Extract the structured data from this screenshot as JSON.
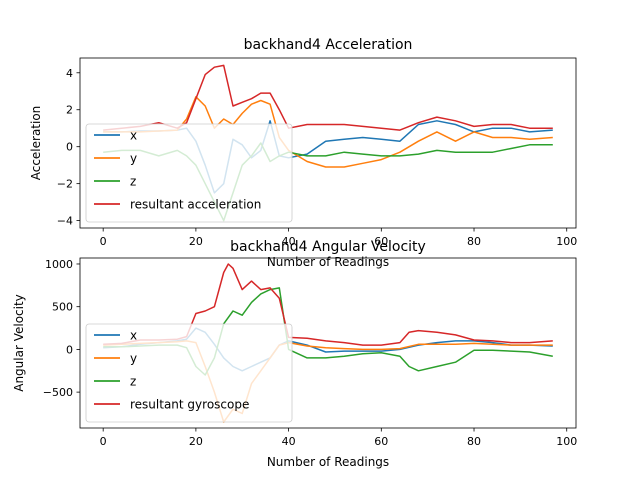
{
  "chart_data": [
    {
      "type": "line",
      "title": "backhand4 Acceleration",
      "xlabel": "Number of Readings",
      "ylabel": "Acceleration",
      "xlim": [
        -5,
        102
      ],
      "ylim": [
        -4.4,
        4.8
      ],
      "xticks": [
        0,
        20,
        40,
        60,
        80,
        100
      ],
      "yticks": [
        -4,
        -2,
        0,
        2,
        4
      ],
      "legend_position": "lower-left",
      "series": [
        {
          "name": "x",
          "color": "#1f77b4",
          "x": [
            0,
            4,
            8,
            12,
            16,
            18,
            20,
            22,
            24,
            26,
            28,
            30,
            32,
            34,
            36,
            38,
            40,
            44,
            48,
            52,
            56,
            60,
            64,
            68,
            72,
            76,
            80,
            84,
            88,
            92,
            97
          ],
          "y": [
            0.8,
            0.8,
            0.85,
            0.85,
            0.9,
            1.0,
            0.3,
            -1.0,
            -2.5,
            -2.0,
            0.4,
            0.1,
            -0.6,
            -0.2,
            1.4,
            -0.5,
            -0.6,
            -0.4,
            0.3,
            0.4,
            0.5,
            0.4,
            0.3,
            1.2,
            1.4,
            1.2,
            0.8,
            1.0,
            1.0,
            0.8,
            0.9
          ]
        },
        {
          "name": "y",
          "color": "#ff7f0e",
          "x": [
            0,
            4,
            8,
            12,
            16,
            18,
            20,
            22,
            24,
            26,
            28,
            30,
            32,
            34,
            36,
            38,
            40,
            44,
            48,
            52,
            56,
            60,
            64,
            68,
            72,
            76,
            80,
            84,
            88,
            92,
            97
          ],
          "y": [
            0.8,
            0.8,
            0.8,
            0.85,
            0.9,
            1.5,
            2.7,
            2.2,
            1.0,
            1.5,
            1.2,
            1.8,
            2.3,
            2.5,
            2.3,
            0.5,
            -0.2,
            -0.8,
            -1.1,
            -1.1,
            -0.9,
            -0.7,
            -0.3,
            0.3,
            0.8,
            0.3,
            0.8,
            0.5,
            0.5,
            0.4,
            0.5
          ]
        },
        {
          "name": "z",
          "color": "#2ca02c",
          "x": [
            0,
            4,
            8,
            12,
            16,
            18,
            20,
            22,
            24,
            26,
            28,
            30,
            32,
            34,
            36,
            38,
            40,
            44,
            48,
            52,
            56,
            60,
            64,
            68,
            72,
            76,
            80,
            84,
            88,
            92,
            97
          ],
          "y": [
            -0.3,
            -0.2,
            -0.2,
            -0.5,
            -0.2,
            -0.5,
            -1.0,
            -2.0,
            -3.0,
            -4.0,
            -2.5,
            -1.0,
            -0.5,
            0.2,
            -0.8,
            -0.5,
            -0.3,
            -0.5,
            -0.5,
            -0.3,
            -0.4,
            -0.5,
            -0.5,
            -0.4,
            -0.2,
            -0.3,
            -0.3,
            -0.3,
            -0.1,
            0.1,
            0.1
          ]
        },
        {
          "name": "resultant acceleration",
          "color": "#d62728",
          "x": [
            0,
            4,
            8,
            12,
            16,
            18,
            20,
            22,
            24,
            26,
            28,
            30,
            32,
            34,
            36,
            38,
            40,
            44,
            48,
            52,
            56,
            60,
            64,
            68,
            72,
            76,
            80,
            84,
            88,
            92,
            97
          ],
          "y": [
            0.9,
            1.0,
            1.1,
            1.3,
            1.0,
            1.3,
            2.6,
            3.9,
            4.3,
            4.4,
            2.2,
            2.4,
            2.6,
            2.9,
            2.9,
            2.0,
            1.0,
            1.2,
            1.2,
            1.2,
            1.1,
            1.0,
            0.9,
            1.3,
            1.6,
            1.4,
            1.1,
            1.2,
            1.2,
            1.0,
            1.0
          ]
        }
      ]
    },
    {
      "type": "line",
      "title": "backhand4 Angular Velocity",
      "xlabel": "Number of Readings",
      "ylabel": "Angular Velocity",
      "xlim": [
        -5,
        102
      ],
      "ylim": [
        -920,
        1070
      ],
      "xticks": [
        0,
        20,
        40,
        60,
        80,
        100
      ],
      "yticks": [
        -500,
        0,
        500,
        1000
      ],
      "legend_position": "lower-left",
      "series": [
        {
          "name": "x",
          "color": "#1f77b4",
          "x": [
            0,
            4,
            8,
            12,
            16,
            18,
            20,
            22,
            24,
            26,
            28,
            30,
            32,
            34,
            36,
            38,
            40,
            44,
            48,
            52,
            56,
            60,
            64,
            68,
            72,
            76,
            80,
            84,
            88,
            92,
            97
          ],
          "y": [
            20,
            30,
            60,
            80,
            100,
            120,
            250,
            200,
            60,
            -100,
            -200,
            -250,
            -200,
            -150,
            -100,
            50,
            100,
            50,
            -30,
            -20,
            -20,
            -20,
            0,
            50,
            80,
            100,
            100,
            80,
            50,
            50,
            40
          ]
        },
        {
          "name": "y",
          "color": "#ff7f0e",
          "x": [
            0,
            4,
            8,
            12,
            16,
            18,
            20,
            22,
            24,
            26,
            28,
            30,
            32,
            34,
            36,
            38,
            40,
            44,
            48,
            52,
            56,
            60,
            64,
            68,
            72,
            76,
            80,
            84,
            88,
            92,
            97
          ],
          "y": [
            50,
            60,
            70,
            80,
            90,
            100,
            80,
            -200,
            -500,
            -850,
            -700,
            -750,
            -400,
            -250,
            -100,
            50,
            80,
            40,
            20,
            10,
            0,
            0,
            10,
            60,
            60,
            60,
            70,
            60,
            50,
            50,
            50
          ]
        },
        {
          "name": "z",
          "color": "#2ca02c",
          "x": [
            0,
            4,
            8,
            12,
            16,
            18,
            20,
            22,
            24,
            26,
            28,
            30,
            32,
            34,
            36,
            38,
            40,
            44,
            48,
            52,
            56,
            60,
            64,
            66,
            68,
            72,
            76,
            80,
            84,
            88,
            92,
            97
          ],
          "y": [
            30,
            30,
            40,
            50,
            50,
            20,
            -200,
            -300,
            -100,
            300,
            450,
            400,
            550,
            650,
            700,
            720,
            0,
            -100,
            -100,
            -80,
            -50,
            -40,
            -80,
            -200,
            -250,
            -200,
            -150,
            -10,
            -10,
            -20,
            -30,
            -80
          ]
        },
        {
          "name": "resultant gyroscope",
          "color": "#d62728",
          "x": [
            0,
            4,
            8,
            12,
            16,
            18,
            20,
            22,
            24,
            26,
            27,
            28,
            30,
            32,
            34,
            36,
            38,
            40,
            44,
            48,
            52,
            56,
            60,
            64,
            66,
            68,
            72,
            76,
            80,
            84,
            88,
            92,
            97
          ],
          "y": [
            60,
            70,
            110,
            110,
            120,
            150,
            420,
            450,
            500,
            900,
            1000,
            950,
            700,
            800,
            700,
            720,
            600,
            140,
            130,
            100,
            80,
            50,
            50,
            80,
            200,
            220,
            200,
            170,
            110,
            100,
            80,
            80,
            100
          ]
        }
      ]
    }
  ]
}
